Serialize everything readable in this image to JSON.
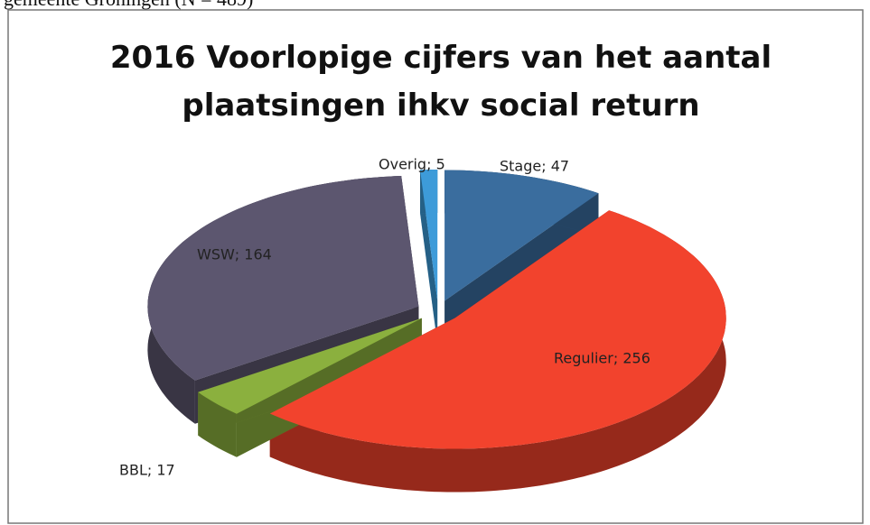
{
  "caption": "gemeente Groningen (N = 489)",
  "chart_data": {
    "type": "pie3d",
    "title": [
      "2016 Voorlopige cijfers van het aantal",
      "plaatsingen ihkv social return"
    ],
    "categories": [
      "Stage",
      "Regulier",
      "BBL",
      "WSW",
      "Overig"
    ],
    "values": [
      47,
      256,
      17,
      164,
      5
    ],
    "value_labels": [
      "Stage; 47",
      "Regulier; 256",
      "BBL; 17",
      "WSW; 164",
      "Overig; 5"
    ],
    "colors": [
      "#3a6d9e",
      "#f2432d",
      "#8bb03e",
      "#5c566f",
      "#3d9bd9"
    ],
    "exploded": true
  }
}
